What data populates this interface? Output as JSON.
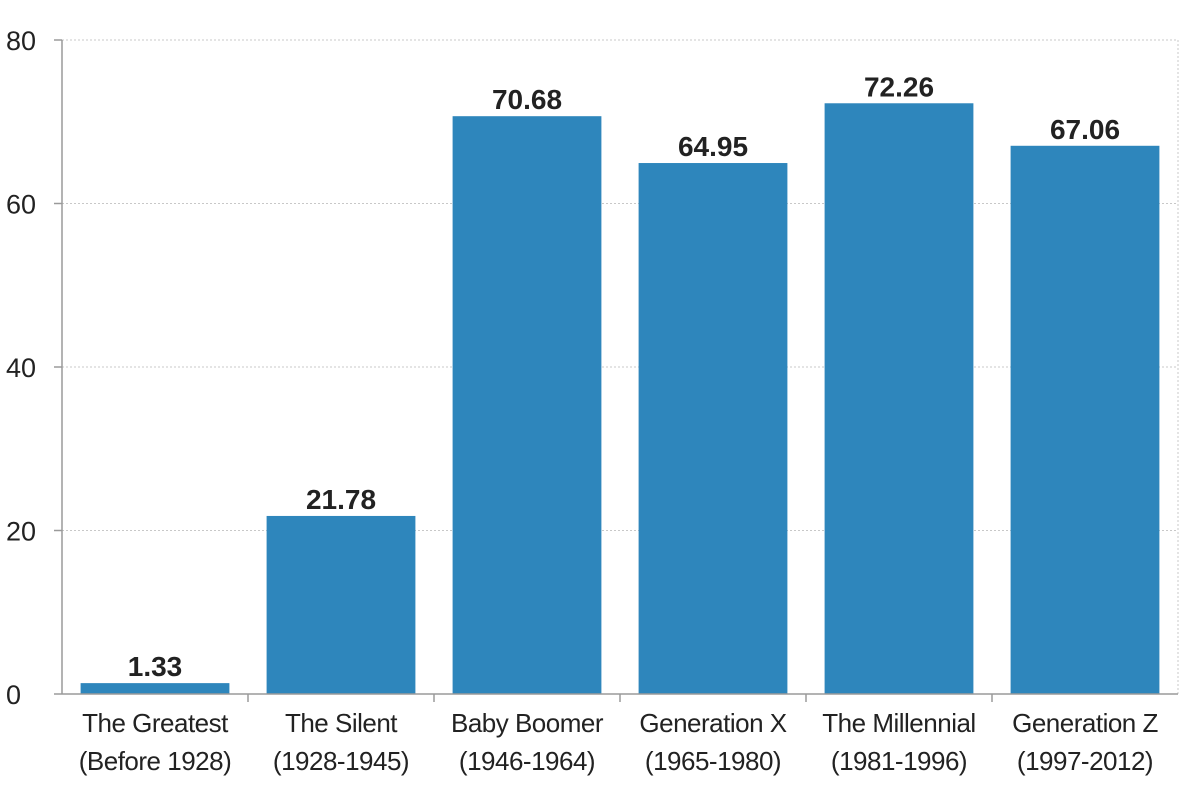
{
  "chart_data": {
    "type": "bar",
    "categories": [
      [
        "The Greatest",
        "(Before 1928)"
      ],
      [
        "The Silent",
        "(1928-1945)"
      ],
      [
        "Baby Boomer",
        "(1946-1964)"
      ],
      [
        "Generation X",
        "(1965-1980)"
      ],
      [
        "The Millennial",
        "(1981-1996)"
      ],
      [
        "Generation Z",
        "(1997-2012)"
      ]
    ],
    "values": [
      1.33,
      21.78,
      70.68,
      64.95,
      72.26,
      67.06
    ],
    "value_labels": [
      "1.33",
      "21.78",
      "70.68",
      "64.95",
      "72.26",
      "67.06"
    ],
    "ylim": [
      0,
      80
    ],
    "yticks": [
      0,
      20,
      40,
      60,
      80
    ],
    "ytick_labels": [
      "0",
      "20",
      "40",
      "60",
      "80"
    ],
    "title": "",
    "xlabel": "",
    "ylabel": "",
    "grid": true,
    "bar_color": "#2e86bc"
  }
}
